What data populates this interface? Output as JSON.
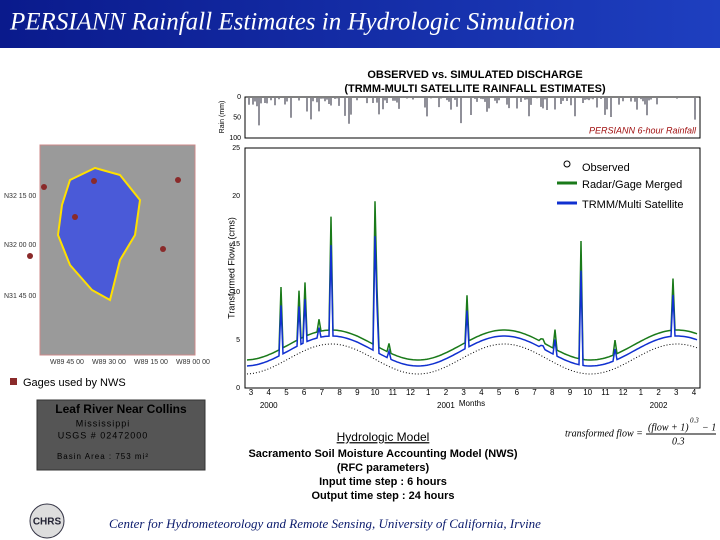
{
  "header": {
    "title": "PERSIANN Rainfall Estimates in Hydrologic Simulation"
  },
  "plot": {
    "title_line1": "OBSERVED vs. SIMULATED DISCHARGE",
    "title_line2": "(TRMM-MULTI SATELLITE RAINFALL ESTIMATES)",
    "rain_label": "Rain (mm)",
    "rain_ticks": [
      "0",
      "50",
      "100"
    ],
    "rain_series": "PERSIANN 6-hour Rainfall",
    "flow_label": "Transformed Flows (cms)",
    "flow_ticks": [
      "0",
      "5",
      "10",
      "15",
      "20",
      "25"
    ],
    "x_label": "Months",
    "months": [
      "3",
      "4",
      "5",
      "6",
      "7",
      "8",
      "9",
      "10",
      "11",
      "12",
      "1",
      "2",
      "3",
      "4",
      "5",
      "6",
      "7",
      "8",
      "9",
      "10",
      "11",
      "12",
      "1",
      "2",
      "3",
      "4"
    ],
    "years": [
      "2000",
      "2001",
      "2002"
    ],
    "legend": [
      "Observed",
      "Radar/Gage Merged",
      "TRMM/Multi Satellite"
    ]
  },
  "map": {
    "lat_labels": [
      "N32 15 00",
      "N32 00 00",
      "N31 45 00"
    ],
    "lon_labels": [
      "W89 45 00",
      "W89 30 00",
      "W89 15 00",
      "W89 00 00"
    ],
    "gage_legend": "Gages used by NWS"
  },
  "basin": {
    "name": "Leaf River Near Collins",
    "state": "Mississippi",
    "usgs": "USGS # 02472000",
    "area": "Basin Area : 753 mi²"
  },
  "model": {
    "heading": "Hydrologic Model",
    "lines": [
      "Sacramento Soil Moisture Accounting Model (NWS)",
      "(RFC parameters)",
      "Input time step : 6 hours",
      "Output time step : 24 hours"
    ]
  },
  "formula": {
    "lhs": "transformed flow =",
    "numerator": "(flow + 1)",
    "exponent": "0.3",
    "minus": "− 1",
    "denominator": "0.3"
  },
  "footer": {
    "text": "Center for Hydrometeorology and Remote Sensing, University of California, Irvine",
    "logo": "CHRS"
  }
}
